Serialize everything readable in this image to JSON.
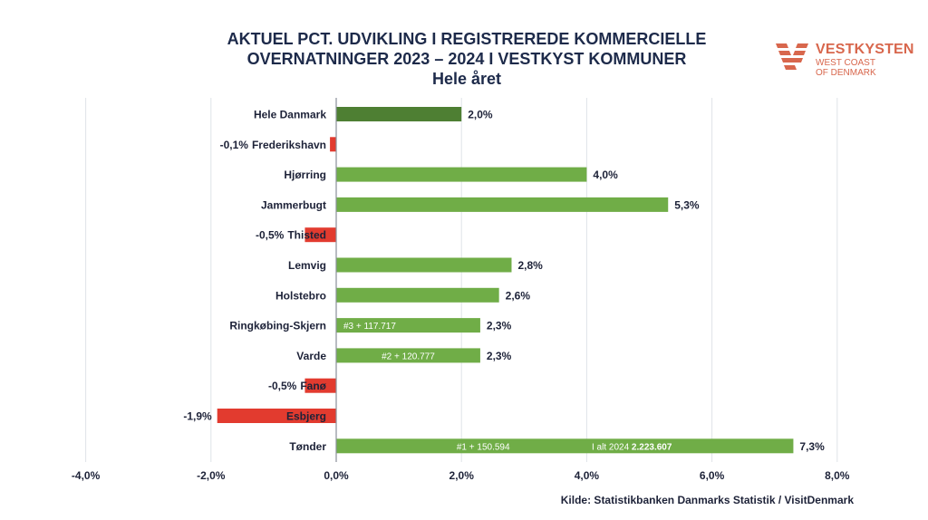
{
  "header": {
    "title_line1": "AKTUEL PCT. UDVIKLING I REGISTREREDE KOMMERCIELLE",
    "title_line2": "OVERNATNINGER 2023 – 2024 I VESTKYST KOMMUNER",
    "subtitle": "Hele året"
  },
  "logo": {
    "brand": "VESTKYSTEN",
    "line1": "WEST COAST",
    "line2": "OF DENMARK"
  },
  "source": "Kilde: Statistikbanken Danmarks Statistik / VisitDenmark",
  "chart_data": {
    "type": "bar",
    "orientation": "horizontal",
    "title": "AKTUEL PCT. UDVIKLING I REGISTREREDE KOMMERCIELLE OVERNATNINGER 2023 – 2024 I VESTKYST KOMMUNER",
    "subtitle": "Hele året",
    "categories": [
      "Hele Danmark",
      "Frederikshavn",
      "Hjørring",
      "Jammerbugt",
      "Thisted",
      "Lemvig",
      "Holstebro",
      "Ringkøbing-Skjern",
      "Varde",
      "Fanø",
      "Esbjerg",
      "Tønder"
    ],
    "values": [
      2.0,
      -0.1,
      4.0,
      5.3,
      -0.5,
      2.8,
      2.6,
      2.3,
      2.3,
      -0.5,
      -1.9,
      7.3
    ],
    "value_labels": [
      "2,0%",
      "-0,1%",
      "4,0%",
      "5,3%",
      "-0,5%",
      "2,8%",
      "2,6%",
      "2,3%",
      "2,3%",
      "-0,5%",
      "-1,9%",
      "7,3%"
    ],
    "bar_annotations": [
      "",
      "",
      "",
      "",
      "",
      "",
      "",
      "#3 + 117.717",
      "#2 + 120.777",
      "",
      "",
      "#1 + 150.594"
    ],
    "extra_annotation": {
      "category": "Tønder",
      "prefix": "I alt 2024",
      "value": "2.223.607"
    },
    "xlim": [
      -4,
      8
    ],
    "xticks": [
      -4,
      -2,
      0,
      2,
      4,
      6,
      8
    ],
    "xtick_labels": [
      "-4,0%",
      "-2,0%",
      "0,0%",
      "2,0%",
      "4,0%",
      "6,0%",
      "8,0%"
    ],
    "grid": true,
    "colors": {
      "positive": "#70ad47",
      "negative": "#e23b2f",
      "highlight": "#4e7f33",
      "grid": "#dfe3e8",
      "text": "#1d2238"
    }
  }
}
